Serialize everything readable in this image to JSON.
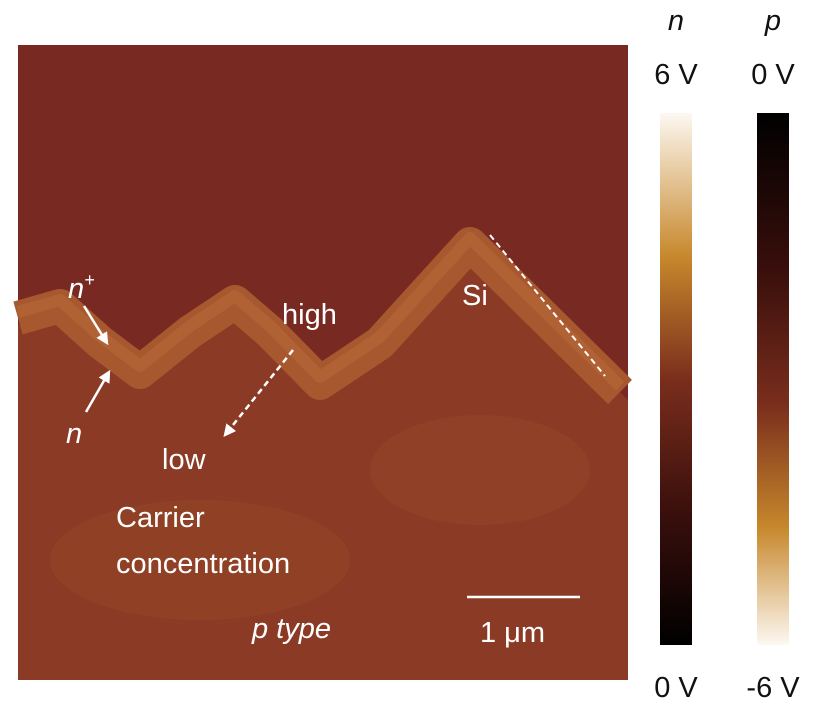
{
  "image": {
    "labels": {
      "n_plus": {
        "base": "n",
        "sup": "+"
      },
      "n": "n",
      "high": "high",
      "low": "low",
      "si": "Si",
      "carrier": "Carrier",
      "concentration": "concentration",
      "p_type": "p type",
      "scale_bar": "1 μm"
    },
    "colorbars": [
      {
        "title": "n",
        "top": "6 V",
        "bottom": "0 V"
      },
      {
        "title": "p",
        "top": "0 V",
        "bottom": "-6 V"
      }
    ]
  }
}
